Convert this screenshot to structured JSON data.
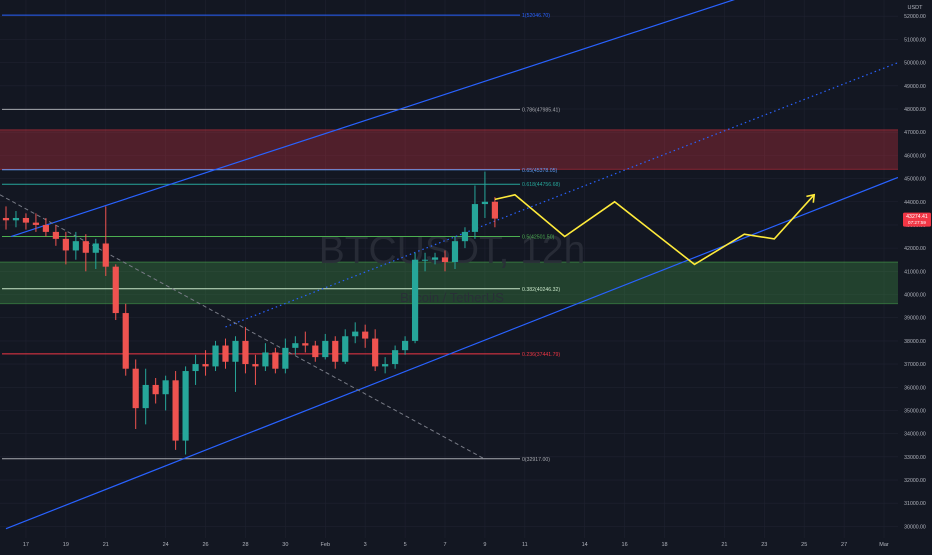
{
  "watermark": {
    "symbol": "BTCUSDT, 12h",
    "subtitle": "Bitcoin / TetherUS"
  },
  "axis": {
    "currency": "USDT",
    "price_ticks": [
      30000,
      31000,
      32000,
      33000,
      34000,
      35000,
      36000,
      37000,
      38000,
      39000,
      40000,
      41000,
      42000,
      43000,
      44000,
      45000,
      46000,
      47000,
      48000,
      49000,
      50000,
      51000,
      52000
    ],
    "price_tick_labels": [
      "30000.00",
      "31000.00",
      "32000.00",
      "33000.00",
      "34000.00",
      "35000.00",
      "36000.00",
      "37000.00",
      "38000.00",
      "39000.00",
      "40000.00",
      "41000.00",
      "42000.00",
      "43000.00",
      "44000.00",
      "45000.00",
      "46000.00",
      "47000.00",
      "48000.00",
      "49000.00",
      "50000.00",
      "51000.00",
      "52000.00"
    ],
    "date_ticks": [
      {
        "label": "17",
        "t": 0
      },
      {
        "label": "19",
        "t": 4
      },
      {
        "label": "21",
        "t": 8
      },
      {
        "label": "24",
        "t": 14
      },
      {
        "label": "26",
        "t": 18
      },
      {
        "label": "28",
        "t": 22
      },
      {
        "label": "30",
        "t": 26
      },
      {
        "label": "Feb",
        "t": 30
      },
      {
        "label": "3",
        "t": 34
      },
      {
        "label": "5",
        "t": 38
      },
      {
        "label": "7",
        "t": 42
      },
      {
        "label": "9",
        "t": 46
      },
      {
        "label": "11",
        "t": 50
      },
      {
        "label": "14",
        "t": 56
      },
      {
        "label": "16",
        "t": 60
      },
      {
        "label": "18",
        "t": 64
      },
      {
        "label": "21",
        "t": 70
      },
      {
        "label": "23",
        "t": 74
      },
      {
        "label": "25",
        "t": 78
      },
      {
        "label": "27",
        "t": 82
      },
      {
        "label": "Mar",
        "t": 86
      }
    ],
    "current_price": {
      "value": 43274.41,
      "label": "43274.41",
      "sublabel": "07:27:59",
      "color": "#f23645"
    }
  },
  "chart_data": {
    "type": "candlestick",
    "interval": "12h",
    "y_range": [
      29500,
      52700
    ],
    "x_range": [
      -2.6,
      87.4
    ],
    "candles": [
      {
        "t": -2,
        "o": 43300,
        "h": 43800,
        "l": 42800,
        "c": 43200
      },
      {
        "t": -1,
        "o": 43200,
        "h": 43600,
        "l": 42900,
        "c": 43300
      },
      {
        "t": 0,
        "o": 43300,
        "h": 43500,
        "l": 42800,
        "c": 43100
      },
      {
        "t": 1,
        "o": 43100,
        "h": 43500,
        "l": 42700,
        "c": 43000
      },
      {
        "t": 2,
        "o": 43000,
        "h": 43300,
        "l": 42500,
        "c": 42700
      },
      {
        "t": 3,
        "o": 42700,
        "h": 43000,
        "l": 42100,
        "c": 42400
      },
      {
        "t": 4,
        "o": 42400,
        "h": 42700,
        "l": 41300,
        "c": 41900
      },
      {
        "t": 5,
        "o": 41900,
        "h": 42700,
        "l": 41500,
        "c": 42300
      },
      {
        "t": 6,
        "o": 42300,
        "h": 42600,
        "l": 41000,
        "c": 41800
      },
      {
        "t": 7,
        "o": 41800,
        "h": 42400,
        "l": 41100,
        "c": 42200
      },
      {
        "t": 8,
        "o": 42200,
        "h": 43800,
        "l": 40800,
        "c": 41200
      },
      {
        "t": 9,
        "o": 41200,
        "h": 41300,
        "l": 38900,
        "c": 39200
      },
      {
        "t": 10,
        "o": 39200,
        "h": 39600,
        "l": 36500,
        "c": 36800
      },
      {
        "t": 11,
        "o": 36800,
        "h": 37200,
        "l": 34200,
        "c": 35100
      },
      {
        "t": 12,
        "o": 35100,
        "h": 36800,
        "l": 34400,
        "c": 36100
      },
      {
        "t": 13,
        "o": 36100,
        "h": 36400,
        "l": 35300,
        "c": 35700
      },
      {
        "t": 14,
        "o": 35700,
        "h": 36500,
        "l": 35000,
        "c": 36300
      },
      {
        "t": 15,
        "o": 36300,
        "h": 36700,
        "l": 33300,
        "c": 33700
      },
      {
        "t": 16,
        "o": 33700,
        "h": 36900,
        "l": 33100,
        "c": 36700
      },
      {
        "t": 17,
        "o": 36700,
        "h": 37400,
        "l": 36100,
        "c": 37000
      },
      {
        "t": 18,
        "o": 37000,
        "h": 37600,
        "l": 36500,
        "c": 36900
      },
      {
        "t": 19,
        "o": 36900,
        "h": 38000,
        "l": 36700,
        "c": 37800
      },
      {
        "t": 20,
        "o": 37800,
        "h": 38100,
        "l": 36800,
        "c": 37100
      },
      {
        "t": 21,
        "o": 37100,
        "h": 38200,
        "l": 35800,
        "c": 38000
      },
      {
        "t": 22,
        "o": 38000,
        "h": 38600,
        "l": 36600,
        "c": 37000
      },
      {
        "t": 23,
        "o": 37000,
        "h": 37400,
        "l": 36100,
        "c": 36900
      },
      {
        "t": 24,
        "o": 36900,
        "h": 37900,
        "l": 36700,
        "c": 37500
      },
      {
        "t": 25,
        "o": 37500,
        "h": 37700,
        "l": 36600,
        "c": 36800
      },
      {
        "t": 26,
        "o": 36800,
        "h": 38100,
        "l": 36600,
        "c": 37700
      },
      {
        "t": 27,
        "o": 37700,
        "h": 38200,
        "l": 37400,
        "c": 37900
      },
      {
        "t": 28,
        "o": 37900,
        "h": 38400,
        "l": 37500,
        "c": 37800
      },
      {
        "t": 29,
        "o": 37800,
        "h": 38000,
        "l": 37100,
        "c": 37300
      },
      {
        "t": 30,
        "o": 37300,
        "h": 38300,
        "l": 37200,
        "c": 38000
      },
      {
        "t": 31,
        "o": 38000,
        "h": 38200,
        "l": 36800,
        "c": 37100
      },
      {
        "t": 32,
        "o": 37100,
        "h": 38500,
        "l": 37000,
        "c": 38200
      },
      {
        "t": 33,
        "o": 38200,
        "h": 38800,
        "l": 37900,
        "c": 38400
      },
      {
        "t": 34,
        "o": 38400,
        "h": 38700,
        "l": 37700,
        "c": 38100
      },
      {
        "t": 35,
        "o": 38100,
        "h": 38500,
        "l": 36700,
        "c": 36900
      },
      {
        "t": 36,
        "o": 36900,
        "h": 37300,
        "l": 36600,
        "c": 37000
      },
      {
        "t": 37,
        "o": 37000,
        "h": 37800,
        "l": 36800,
        "c": 37600
      },
      {
        "t": 38,
        "o": 37600,
        "h": 38200,
        "l": 37400,
        "c": 38000
      },
      {
        "t": 39,
        "o": 38000,
        "h": 41800,
        "l": 37900,
        "c": 41500
      },
      {
        "t": 40,
        "o": 41500,
        "h": 41800,
        "l": 41000,
        "c": 41500
      },
      {
        "t": 41,
        "o": 41500,
        "h": 41800,
        "l": 41300,
        "c": 41600
      },
      {
        "t": 42,
        "o": 41600,
        "h": 41900,
        "l": 41000,
        "c": 41400
      },
      {
        "t": 43,
        "o": 41400,
        "h": 42500,
        "l": 41100,
        "c": 42300
      },
      {
        "t": 44,
        "o": 42300,
        "h": 42900,
        "l": 42000,
        "c": 42700
      },
      {
        "t": 45,
        "o": 42700,
        "h": 44700,
        "l": 42400,
        "c": 43900
      },
      {
        "t": 46,
        "o": 43900,
        "h": 45300,
        "l": 43300,
        "c": 44000
      },
      {
        "t": 47,
        "o": 44000,
        "h": 44200,
        "l": 42900,
        "c": 43274.41
      }
    ],
    "fib_levels": [
      {
        "ratio": "1",
        "label": "1(52046.70)",
        "value": 52046.7,
        "color": "#2962ff"
      },
      {
        "ratio": "0.786",
        "label": "0.786(47985.41)",
        "value": 47985.41,
        "color": "#a6a8ae"
      },
      {
        "ratio": "0.65",
        "label": "0.65(45378.05)",
        "value": 45378.05,
        "color": "#5b9cf6"
      },
      {
        "ratio": "0.618",
        "label": "0.618(44756.68)",
        "value": 44756.68,
        "color": "#26a69a"
      },
      {
        "ratio": "0.5",
        "label": "0.5(42501.50)",
        "value": 42501.5,
        "color": "#4caf50"
      },
      {
        "ratio": "0.382",
        "label": "0.382(40246.32)",
        "value": 40246.32,
        "color": "#c8e6c9"
      },
      {
        "ratio": "0.236",
        "label": "0.236(37441.79)",
        "value": 37441.79,
        "color": "#f23645"
      },
      {
        "ratio": "0",
        "label": "0(32917.00)",
        "value": 32917.0,
        "color": "#a6a8ae"
      }
    ],
    "zones": [
      {
        "name": "resistance",
        "from": 45400,
        "to": 47100,
        "color": "#f23645"
      },
      {
        "name": "support",
        "from": 39600,
        "to": 41400,
        "color": "#4caf50"
      }
    ],
    "trendlines": [
      {
        "name": "channel-upper",
        "points": [
          [
            -1.5,
            42500
          ],
          [
            73,
            53000
          ]
        ],
        "color": "#2962ff",
        "style": "solid"
      },
      {
        "name": "channel-lower",
        "points": [
          [
            -2,
            29900
          ],
          [
            87.4,
            45050
          ]
        ],
        "color": "#2962ff",
        "style": "solid"
      },
      {
        "name": "channel-mid",
        "points": [
          [
            20,
            38600
          ],
          [
            87.4,
            50000
          ]
        ],
        "color": "#2962ff",
        "style": "dotted"
      },
      {
        "name": "descending",
        "points": [
          [
            -2.6,
            44300
          ],
          [
            46,
            32900
          ]
        ],
        "color": "#787b86",
        "style": "dashed"
      }
    ],
    "projection": {
      "color": "#ffeb3b",
      "points": [
        [
          47,
          44100
        ],
        [
          49,
          44300
        ],
        [
          54,
          42500
        ],
        [
          59,
          44000
        ],
        [
          67,
          41300
        ],
        [
          72,
          42600
        ],
        [
          75,
          42400
        ],
        [
          79,
          44300
        ]
      ]
    }
  },
  "colors": {
    "background": "#131722",
    "grid": "#1f2230",
    "up": "#26a69a",
    "down": "#ef5350",
    "axis_text": "#b2b5be"
  }
}
